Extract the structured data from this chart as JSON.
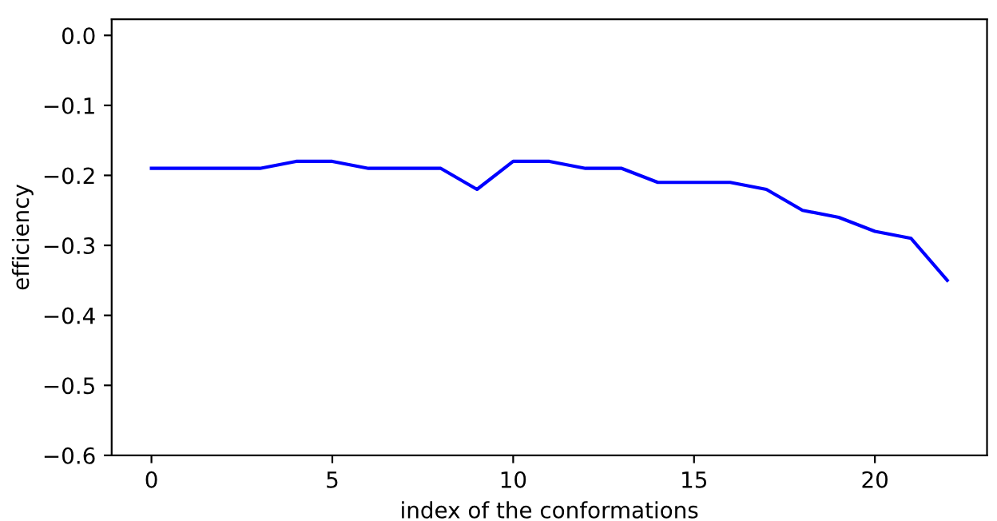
{
  "chart_data": {
    "type": "line",
    "xlabel": "index of the conformations",
    "ylabel": "efficiency",
    "x": [
      0,
      1,
      2,
      3,
      4,
      5,
      6,
      7,
      8,
      9,
      10,
      11,
      12,
      13,
      14,
      15,
      16,
      17,
      18,
      19,
      20,
      21,
      22
    ],
    "series": [
      {
        "color": "#0000ff",
        "values": [
          -0.19,
          -0.19,
          -0.19,
          -0.19,
          -0.18,
          -0.18,
          -0.19,
          -0.19,
          -0.19,
          -0.22,
          -0.18,
          -0.18,
          -0.19,
          -0.19,
          -0.21,
          -0.21,
          -0.21,
          -0.22,
          -0.25,
          -0.26,
          -0.28,
          -0.29,
          -0.35
        ]
      }
    ],
    "xlim": [
      -1.1,
      23.1
    ],
    "ylim": [
      -0.6,
      0.023
    ],
    "xticks": [
      0,
      5,
      10,
      15,
      20
    ],
    "yticks": [
      {
        "value": 0.0,
        "label": "0.0"
      },
      {
        "value": -0.1,
        "label": "−0.1"
      },
      {
        "value": -0.2,
        "label": "−0.2"
      },
      {
        "value": -0.3,
        "label": "−0.3"
      },
      {
        "value": -0.4,
        "label": "−0.4"
      },
      {
        "value": -0.5,
        "label": "−0.5"
      },
      {
        "value": -0.6,
        "label": "−0.6"
      }
    ],
    "grid": false,
    "legend": false
  }
}
